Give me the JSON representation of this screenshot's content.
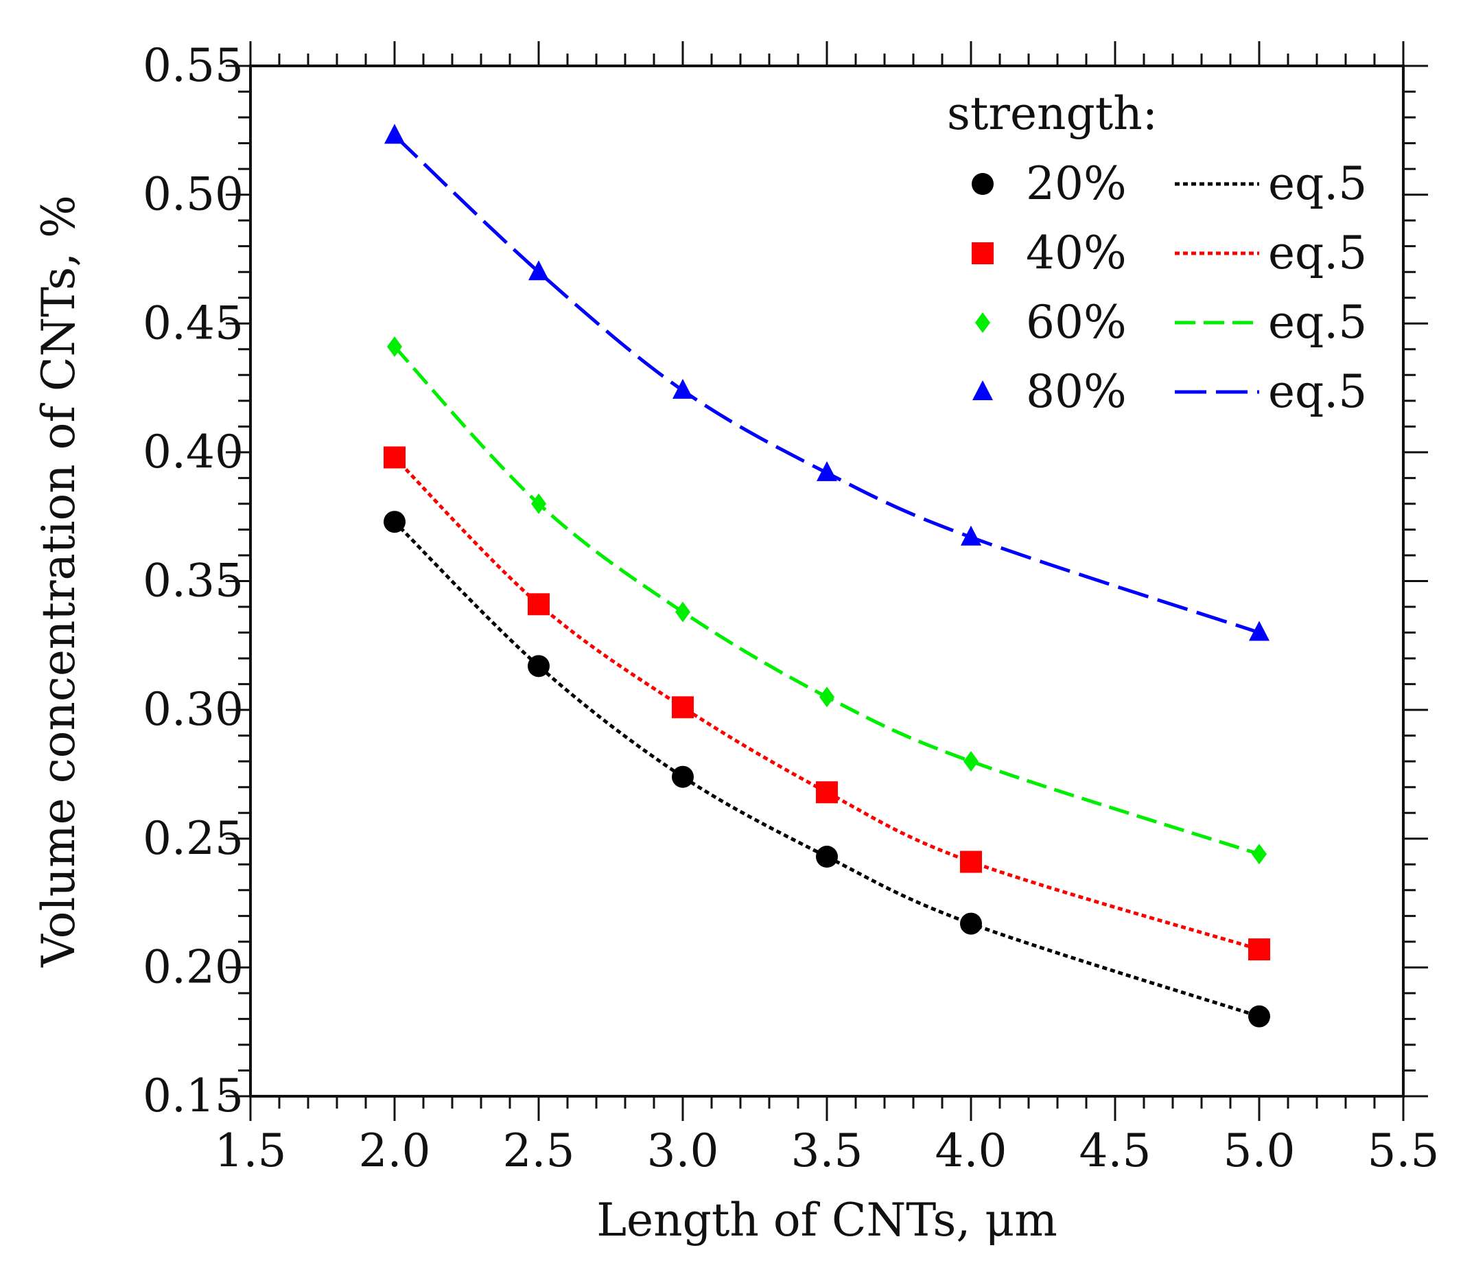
{
  "chart_data": {
    "type": "line",
    "title": "",
    "xlabel": "Length of CNTs, μm",
    "ylabel": "Volume concentration of CNTs, %",
    "xlim": [
      1.5,
      5.5
    ],
    "ylim": [
      0.15,
      0.55
    ],
    "xticks": [
      "1.5",
      "2.0",
      "2.5",
      "3.0",
      "3.5",
      "4.0",
      "4.5",
      "5.0",
      "5.5"
    ],
    "yticks": [
      "0.15",
      "0.20",
      "0.25",
      "0.30",
      "0.35",
      "0.40",
      "0.45",
      "0.50",
      "0.55"
    ],
    "legend": {
      "title": "strength:",
      "position": "top-right",
      "fit_label": "eq.5"
    },
    "x": [
      2.0,
      2.5,
      3.0,
      3.5,
      4.0,
      5.0
    ],
    "series": [
      {
        "name": "20%",
        "marker": "circle",
        "color": "#000000",
        "dash": "dotted",
        "fit_label": "eq.5",
        "values": [
          0.373,
          0.317,
          0.274,
          0.243,
          0.217,
          0.181
        ]
      },
      {
        "name": "40%",
        "marker": "square",
        "color": "#ff0000",
        "dash": "dotted",
        "fit_label": "eq.5",
        "values": [
          0.398,
          0.341,
          0.301,
          0.268,
          0.241,
          0.207
        ]
      },
      {
        "name": "60%",
        "marker": "diamond",
        "color": "#00ee00",
        "dash": "dashed",
        "fit_label": "eq.5",
        "values": [
          0.441,
          0.38,
          0.338,
          0.305,
          0.28,
          0.244
        ]
      },
      {
        "name": "80%",
        "marker": "triangle",
        "color": "#0000ff",
        "dash": "long-dashed",
        "fit_label": "eq.5",
        "values": [
          0.523,
          0.47,
          0.424,
          0.392,
          0.367,
          0.33
        ]
      }
    ]
  }
}
